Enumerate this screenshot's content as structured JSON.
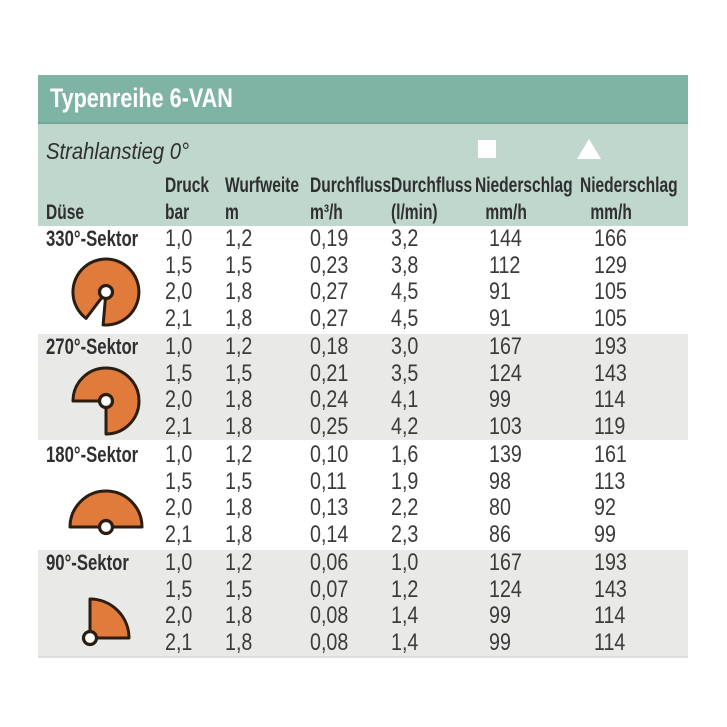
{
  "colors": {
    "page-bg": "#ffffff",
    "header-bg": "#7fb3a4",
    "header-edge": "#73a898",
    "band-bg": "#bfd7cc",
    "alt-row-bg": "#e9eae8",
    "text": "#3b3b3b",
    "heading-text": "#2f2f2f",
    "title-text": "#ffffff",
    "sector-fill": "#e07b3c",
    "sector-outline": "#2b1d10"
  },
  "header": {
    "title": "Typenreihe 6-VAN"
  },
  "subheader": {
    "note": "Strahlanstieg 0°",
    "markers": [
      "square",
      "triangle"
    ]
  },
  "columns": [
    {
      "label": "Düse",
      "unit": ""
    },
    {
      "label": "Druck",
      "unit": "bar"
    },
    {
      "label": "Wurfweite",
      "unit": "m"
    },
    {
      "label": "Durchfluss",
      "unit": "m³/h"
    },
    {
      "label": "Durchfluss",
      "unit": "(l/min)"
    },
    {
      "label": "Niederschlag",
      "unit": "mm/h",
      "marker": "square"
    },
    {
      "label": "Niederschlag",
      "unit": "mm/h",
      "marker": "triangle"
    }
  ],
  "sections": [
    {
      "name": "330°-Sektor",
      "icon": "sector-330",
      "rows": [
        [
          "1,0",
          "1,2",
          "0,19",
          "3,2",
          "144",
          "166"
        ],
        [
          "1,5",
          "1,5",
          "0,23",
          "3,8",
          "112",
          "129"
        ],
        [
          "2,0",
          "1,8",
          "0,27",
          "4,5",
          "91",
          "105"
        ],
        [
          "2,1",
          "1,8",
          "0,27",
          "4,5",
          "91",
          "105"
        ]
      ]
    },
    {
      "name": "270°-Sektor",
      "icon": "sector-270",
      "rows": [
        [
          "1,0",
          "1,2",
          "0,18",
          "3,0",
          "167",
          "193"
        ],
        [
          "1,5",
          "1,5",
          "0,21",
          "3,5",
          "124",
          "143"
        ],
        [
          "2,0",
          "1,8",
          "0,24",
          "4,1",
          "99",
          "114"
        ],
        [
          "2,1",
          "1,8",
          "0,25",
          "4,2",
          "103",
          "119"
        ]
      ]
    },
    {
      "name": "180°-Sektor",
      "icon": "sector-180",
      "rows": [
        [
          "1,0",
          "1,2",
          "0,10",
          "1,6",
          "139",
          "161"
        ],
        [
          "1,5",
          "1,5",
          "0,11",
          "1,9",
          "98",
          "113"
        ],
        [
          "2,0",
          "1,8",
          "0,13",
          "2,2",
          "80",
          "92"
        ],
        [
          "2,1",
          "1,8",
          "0,14",
          "2,3",
          "86",
          "99"
        ]
      ]
    },
    {
      "name": "90°-Sektor",
      "icon": "sector-90",
      "rows": [
        [
          "1,0",
          "1,2",
          "0,06",
          "1,0",
          "167",
          "193"
        ],
        [
          "1,5",
          "1,5",
          "0,07",
          "1,2",
          "124",
          "143"
        ],
        [
          "2,0",
          "1,8",
          "0,08",
          "1,4",
          "99",
          "114"
        ],
        [
          "2,1",
          "1,8",
          "0,08",
          "1,4",
          "99",
          "114"
        ]
      ]
    }
  ]
}
